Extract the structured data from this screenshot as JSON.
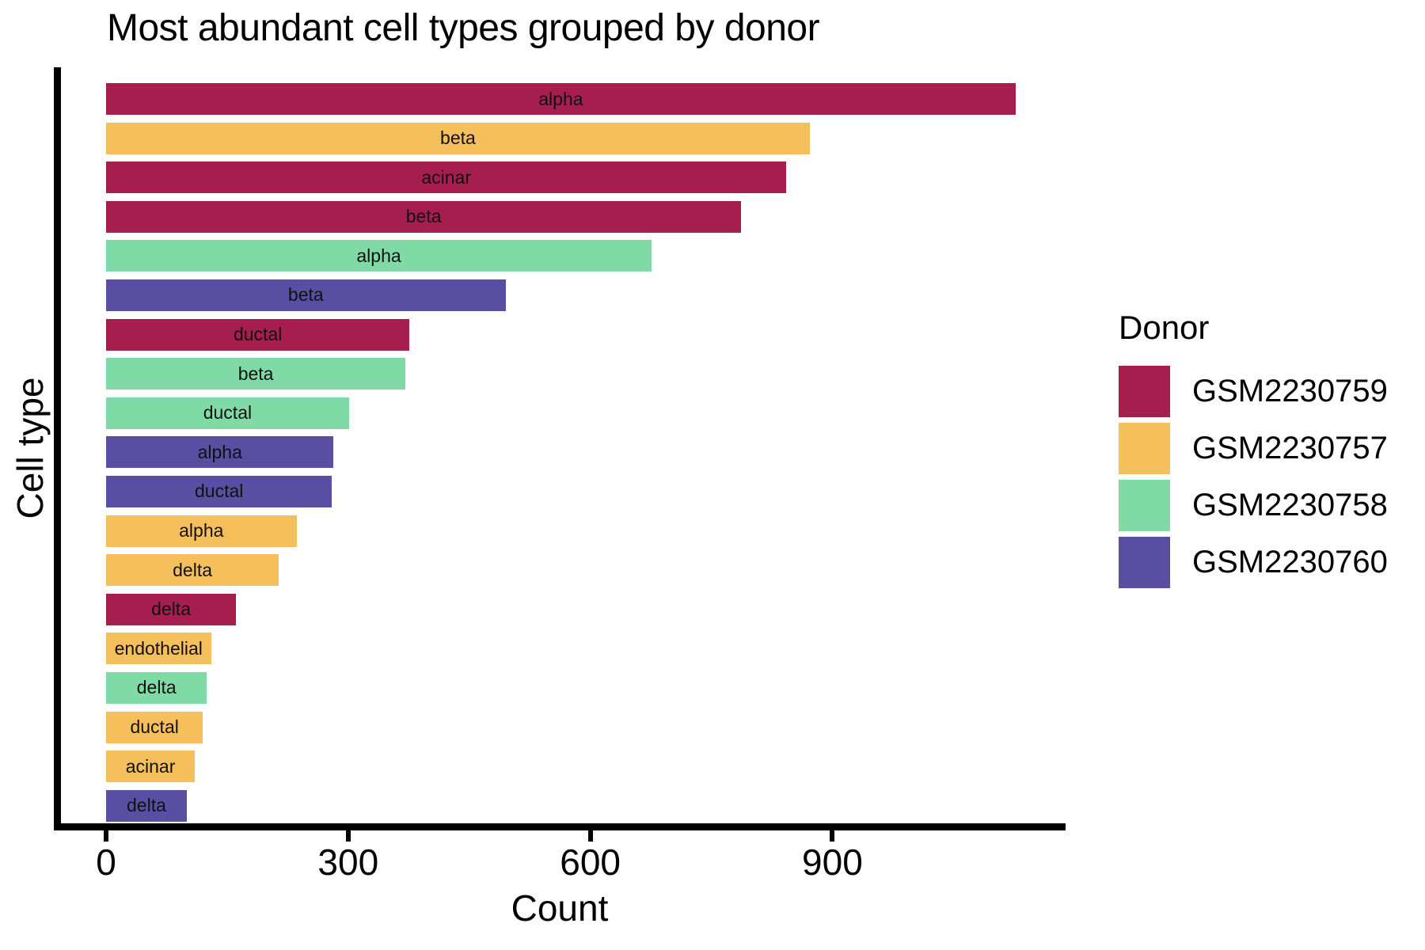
{
  "title": "Most abundant cell types grouped by donor",
  "chart_data": {
    "type": "bar",
    "orientation": "horizontal",
    "title": "Most abundant cell types grouped by donor",
    "xlabel": "Count",
    "ylabel": "Cell type",
    "xlim": [
      0,
      1188
    ],
    "x_ticks": [
      0,
      300,
      600,
      900
    ],
    "grid": false,
    "bar_label_note": "each bar is labeled inside with its cell type, colored by donor",
    "legend": {
      "title": "Donor",
      "position": "right",
      "entries": [
        {
          "label": "GSM2230759",
          "color": "#A61E4D"
        },
        {
          "label": "GSM2230757",
          "color": "#F5BF5C"
        },
        {
          "label": "GSM2230758",
          "color": "#80DAA6"
        },
        {
          "label": "GSM2230760",
          "color": "#584FA3"
        }
      ]
    },
    "bars": [
      {
        "cell_type": "alpha",
        "donor": "GSM2230759",
        "count": 1127
      },
      {
        "cell_type": "beta",
        "donor": "GSM2230757",
        "count": 872
      },
      {
        "cell_type": "acinar",
        "donor": "GSM2230759",
        "count": 843
      },
      {
        "cell_type": "beta",
        "donor": "GSM2230759",
        "count": 787
      },
      {
        "cell_type": "alpha",
        "donor": "GSM2230758",
        "count": 676
      },
      {
        "cell_type": "beta",
        "donor": "GSM2230760",
        "count": 495
      },
      {
        "cell_type": "ductal",
        "donor": "GSM2230759",
        "count": 376
      },
      {
        "cell_type": "beta",
        "donor": "GSM2230758",
        "count": 371
      },
      {
        "cell_type": "ductal",
        "donor": "GSM2230758",
        "count": 301
      },
      {
        "cell_type": "alpha",
        "donor": "GSM2230760",
        "count": 282
      },
      {
        "cell_type": "ductal",
        "donor": "GSM2230760",
        "count": 280
      },
      {
        "cell_type": "alpha",
        "donor": "GSM2230757",
        "count": 236
      },
      {
        "cell_type": "delta",
        "donor": "GSM2230757",
        "count": 214
      },
      {
        "cell_type": "delta",
        "donor": "GSM2230759",
        "count": 161
      },
      {
        "cell_type": "endothelial",
        "donor": "GSM2230757",
        "count": 130
      },
      {
        "cell_type": "delta",
        "donor": "GSM2230758",
        "count": 125
      },
      {
        "cell_type": "ductal",
        "donor": "GSM2230757",
        "count": 120
      },
      {
        "cell_type": "acinar",
        "donor": "GSM2230757",
        "count": 110
      },
      {
        "cell_type": "delta",
        "donor": "GSM2230760",
        "count": 100
      }
    ]
  }
}
